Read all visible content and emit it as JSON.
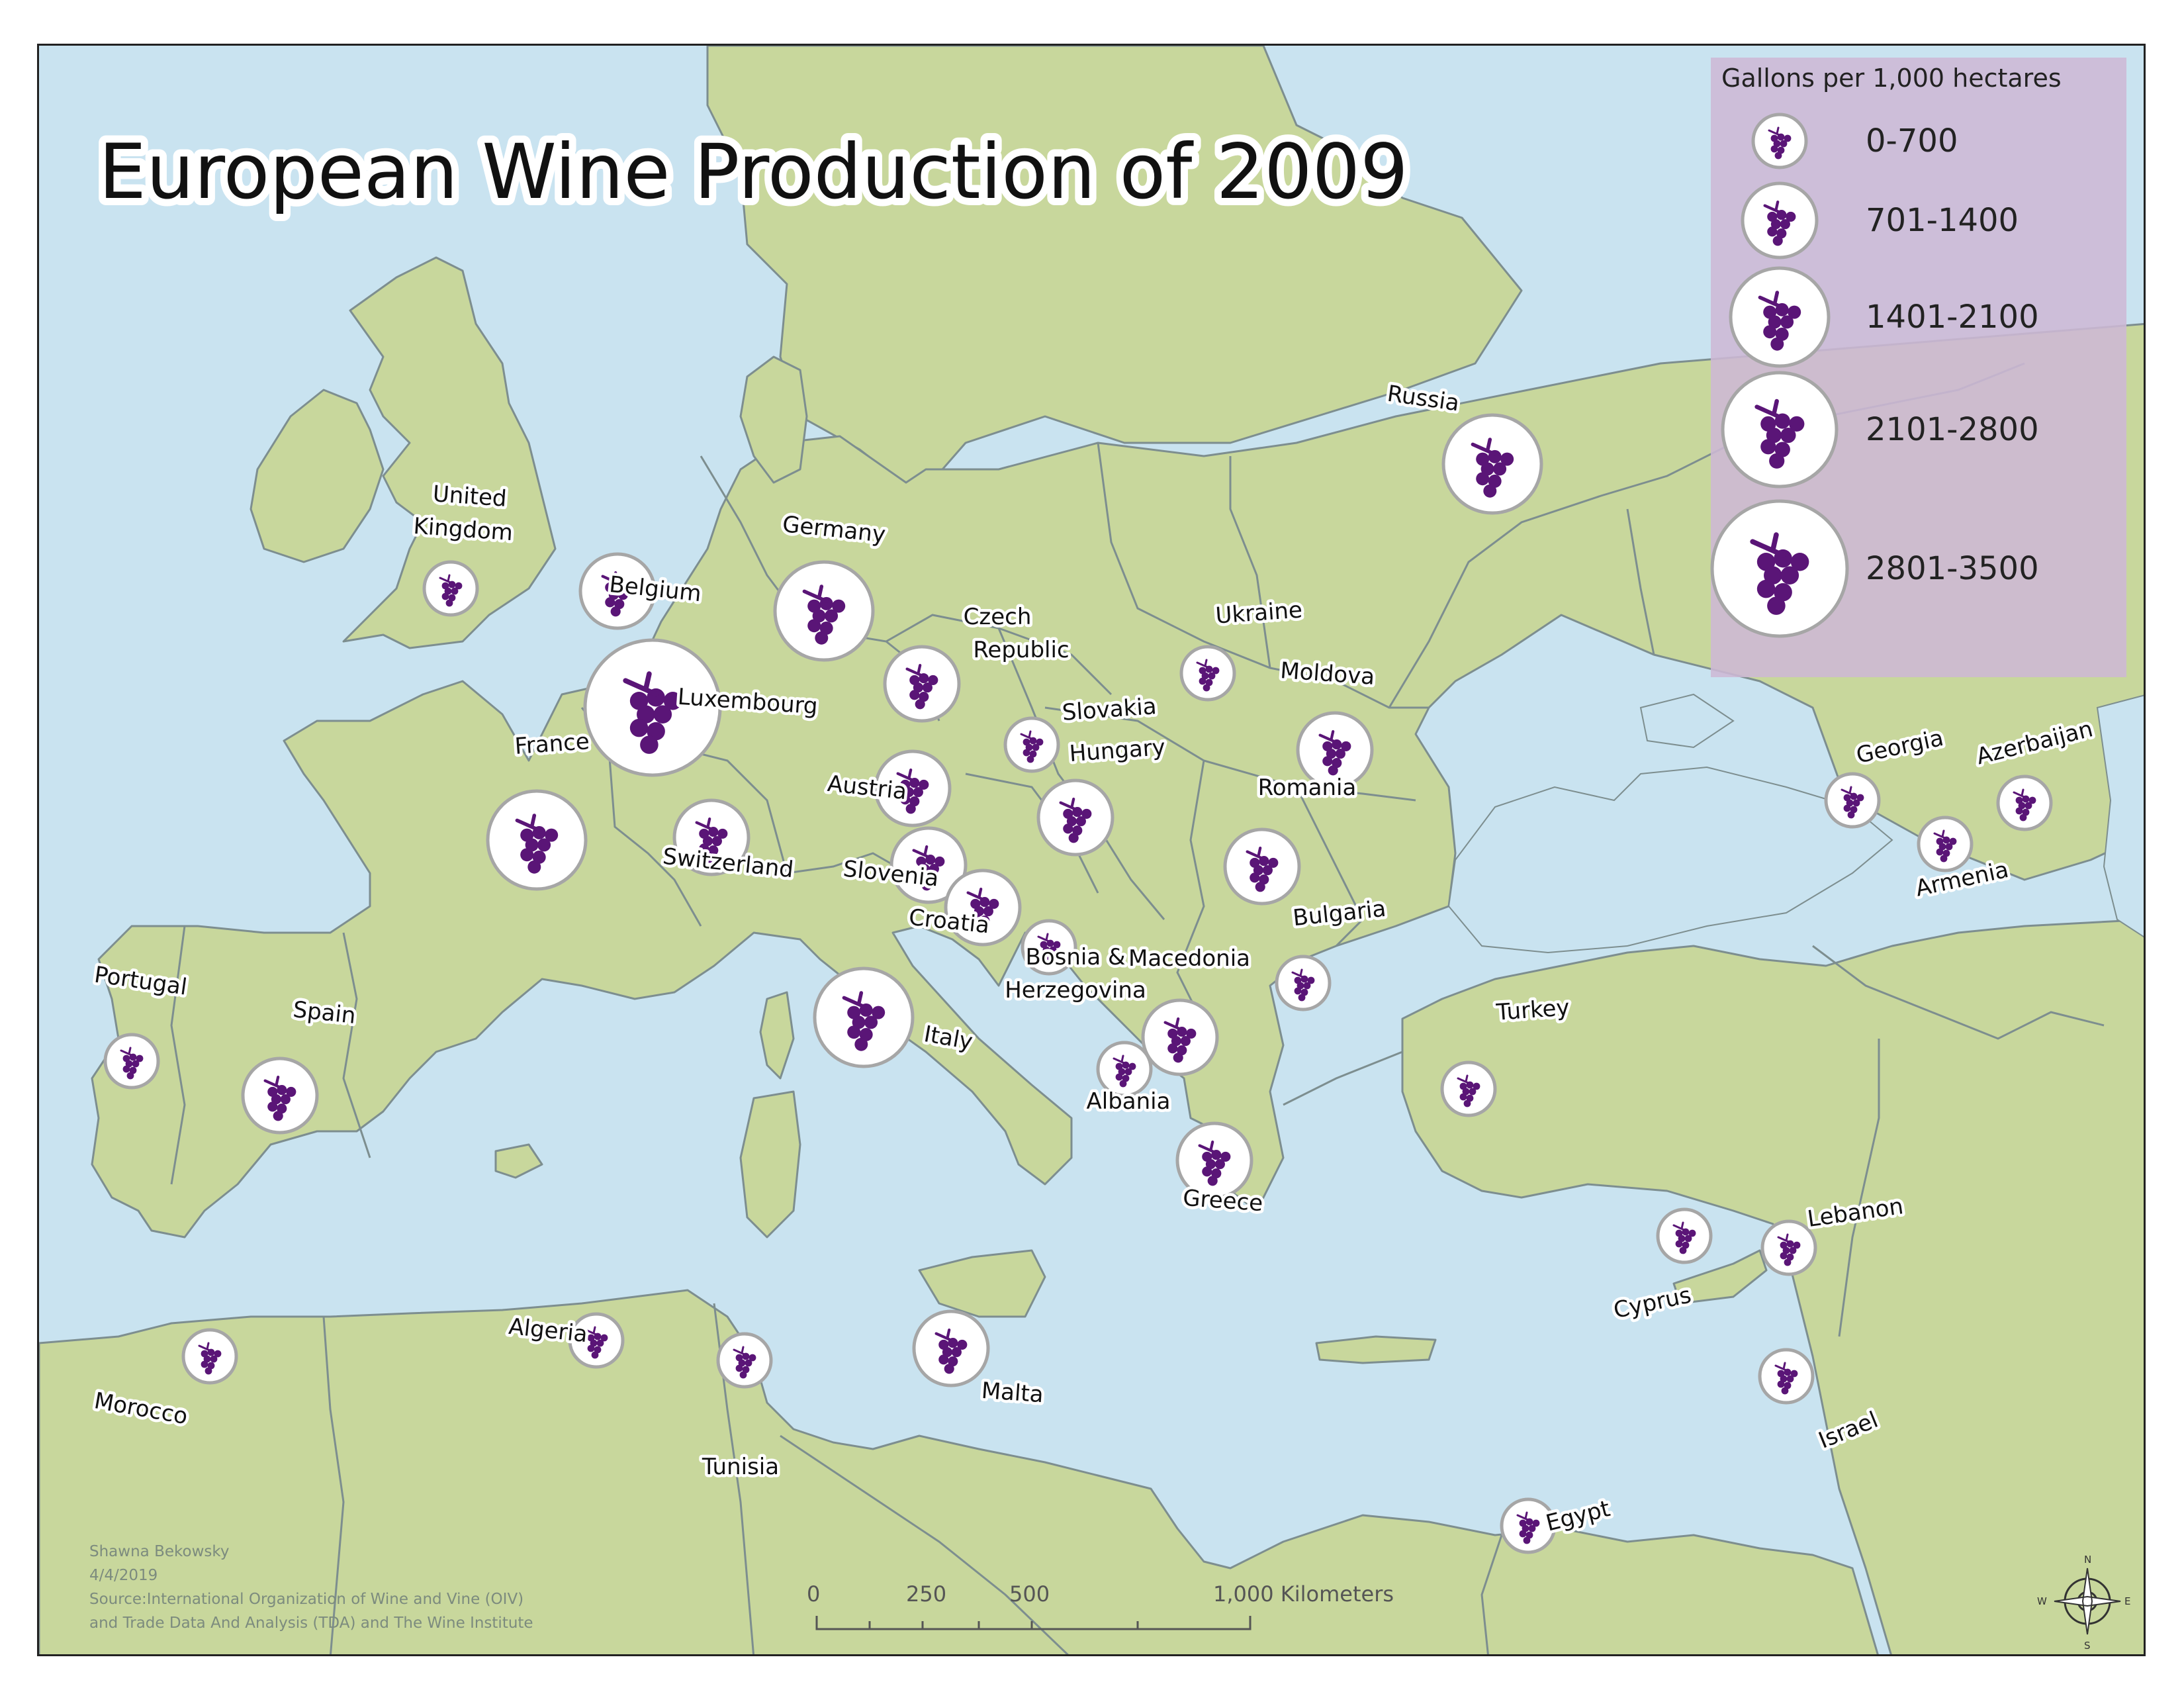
{
  "title": "European Wine Production of 2009",
  "legend": {
    "title": "Gallons per 1,000 hectares",
    "classes": [
      {
        "label": "0-700",
        "class": 1
      },
      {
        "label": "701-1400",
        "class": 2
      },
      {
        "label": "1401-2100",
        "class": 3
      },
      {
        "label": "2101-2800",
        "class": 4
      },
      {
        "label": "2801-3500",
        "class": 5
      }
    ]
  },
  "colors": {
    "water": "#c9e3f0",
    "land": "#c8d79c",
    "grape": "#5a1577",
    "legend": "#cdb8d5"
  },
  "symbol_icon": "grape-cluster-icon",
  "countries": [
    {
      "name": "United Kingdom",
      "class": 1
    },
    {
      "name": "Belgium",
      "class": 2
    },
    {
      "name": "Germany",
      "class": 3
    },
    {
      "name": "Luxembourg",
      "class": 5
    },
    {
      "name": "France",
      "class": 3
    },
    {
      "name": "Czech Republic",
      "class": 2
    },
    {
      "name": "Slovakia",
      "class": 1
    },
    {
      "name": "Austria",
      "class": 2
    },
    {
      "name": "Hungary",
      "class": 2
    },
    {
      "name": "Switzerland",
      "class": 2
    },
    {
      "name": "Slovenia",
      "class": 2
    },
    {
      "name": "Croatia",
      "class": 2
    },
    {
      "name": "Bosnia & Herzegovina",
      "class": 1
    },
    {
      "name": "Italy",
      "class": 3
    },
    {
      "name": "Ukraine",
      "class": 1
    },
    {
      "name": "Moldova",
      "class": 2
    },
    {
      "name": "Romania",
      "class": 2
    },
    {
      "name": "Bulgaria",
      "class": 1
    },
    {
      "name": "Macedonia",
      "class": 2
    },
    {
      "name": "Albania",
      "class": 1
    },
    {
      "name": "Greece",
      "class": 2
    },
    {
      "name": "Russia",
      "class": 3
    },
    {
      "name": "Turkey",
      "class": 1
    },
    {
      "name": "Georgia",
      "class": 1
    },
    {
      "name": "Azerbaijan",
      "class": 1
    },
    {
      "name": "Armenia",
      "class": 1
    },
    {
      "name": "Portugal",
      "class": 1
    },
    {
      "name": "Spain",
      "class": 2
    },
    {
      "name": "Morocco",
      "class": 1
    },
    {
      "name": "Algeria",
      "class": 1
    },
    {
      "name": "Tunisia",
      "class": 1
    },
    {
      "name": "Malta",
      "class": 2
    },
    {
      "name": "Cyprus",
      "class": 1
    },
    {
      "name": "Lebanon",
      "class": 1
    },
    {
      "name": "Israel",
      "class": 1
    },
    {
      "name": "Egypt",
      "class": 1
    }
  ],
  "scale_bar": {
    "ticks": [
      "0",
      "250",
      "500"
    ],
    "end": "1,000 Kilometers"
  },
  "credits": {
    "author": "Shawna Bekowsky",
    "date": "4/4/2019",
    "source_line1": "Source:International Organization of Wine and Vine (OIV)",
    "source_line2": "and Trade Data And Analysis (TDA) and The Wine Institute"
  },
  "north_arrow": {
    "icon": "compass-rose-icon",
    "n": "N",
    "s": "S",
    "e": "E",
    "w": "W"
  }
}
